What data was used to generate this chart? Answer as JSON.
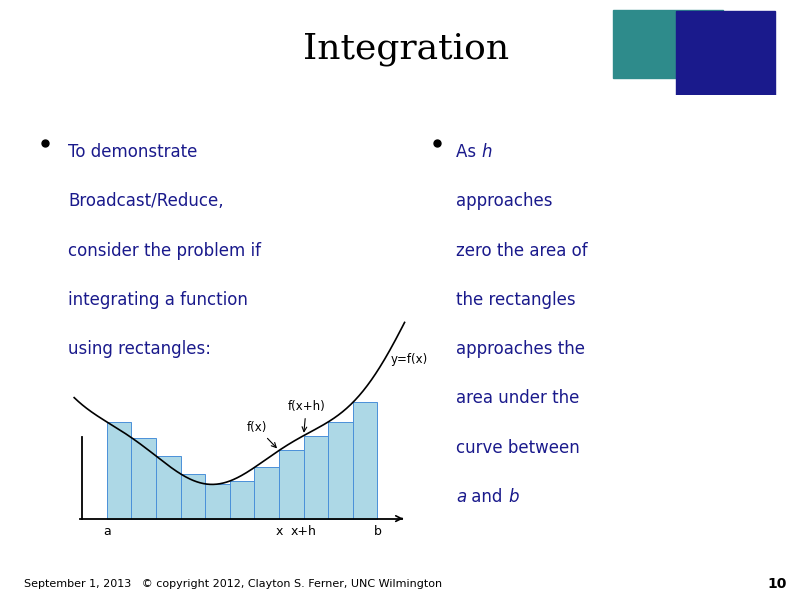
{
  "title": "Integration",
  "title_fontsize": 26,
  "title_color": "#000000",
  "background_color": "#ffffff",
  "header_bar_color": "#2e8b8b",
  "left_bar_color": "#1a1a8c",
  "bottom_bar_color": "#800000",
  "bottom_bar_accent": "#cccc00",
  "slide_number": "10",
  "footer_text": "September 1, 2013   © copyright 2012, Clayton S. Ferner, UNC Wilmington",
  "bullet1_lines": [
    "To demonstrate",
    "Broadcast/Reduce,",
    "consider the problem if",
    "integrating a function",
    "using rectangles:"
  ],
  "text_color": "#1a1a8c",
  "bullet_color": "#000000",
  "graph_bar_color": "#add8e6",
  "graph_bar_edge": "#4a90d9",
  "curve_color": "#000000",
  "axis_color": "#000000",
  "logo_teal": "#2e8b8b",
  "logo_navy": "#1a1a8c",
  "header_line_color": "#2e8b8b",
  "bottom_line_color": "#800080"
}
